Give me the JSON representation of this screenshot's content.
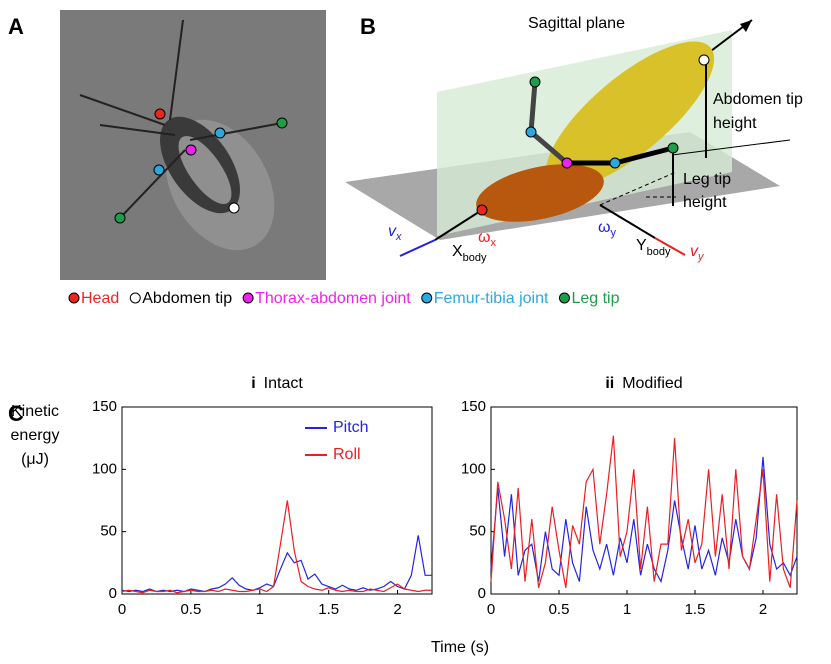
{
  "panels": {
    "a": "A",
    "b": "B",
    "c": "C"
  },
  "diagram": {
    "plane": "Sagittal plane",
    "abdomen_height": [
      "Abdomen tip",
      "height"
    ],
    "leg_height": [
      "Leg tip",
      "height"
    ],
    "vx": {
      "main": "v",
      "sub": "x"
    },
    "vy": {
      "main": "v",
      "sub": "y"
    },
    "wx": {
      "main": "ω",
      "sub": "x"
    },
    "wy": {
      "main": "ω",
      "sub": "y"
    },
    "xbody": {
      "main": "X",
      "sub": "body"
    },
    "ybody": {
      "main": "Y",
      "sub": "body"
    }
  },
  "legend": [
    {
      "name": "Head",
      "color": "#e8271f"
    },
    {
      "name": "Abdomen tip",
      "color": "#ffffff"
    },
    {
      "name": "Thorax-abdomen joint",
      "color": "#ee22ee"
    },
    {
      "name": "Femur-tibia joint",
      "color": "#2ba8e0"
    },
    {
      "name": "Leg tip",
      "color": "#1e9e4a"
    }
  ],
  "ylabel": [
    "Kinetic",
    "energy",
    "(μJ)"
  ],
  "xlabel": "Time (s)",
  "chart_data": [
    {
      "type": "line",
      "title_num": "i",
      "title": "Intact",
      "x": [
        0,
        0.05,
        0.1,
        0.15,
        0.2,
        0.25,
        0.3,
        0.35,
        0.4,
        0.45,
        0.5,
        0.55,
        0.6,
        0.65,
        0.7,
        0.75,
        0.8,
        0.85,
        0.9,
        0.95,
        1,
        1.05,
        1.1,
        1.15,
        1.2,
        1.25,
        1.3,
        1.35,
        1.4,
        1.45,
        1.5,
        1.55,
        1.6,
        1.65,
        1.7,
        1.75,
        1.8,
        1.85,
        1.9,
        1.95,
        2,
        2.05,
        2.1,
        2.15,
        2.2,
        2.25
      ],
      "series": [
        {
          "name": "Pitch",
          "color": "#2424e0",
          "values": [
            3,
            2,
            3,
            2,
            4,
            2,
            3,
            2,
            3,
            2,
            4,
            3,
            2,
            4,
            5,
            8,
            13,
            7,
            4,
            3,
            5,
            8,
            6,
            20,
            33,
            25,
            27,
            12,
            16,
            8,
            6,
            4,
            7,
            4,
            3,
            5,
            3,
            4,
            6,
            10,
            6,
            4,
            15,
            47,
            15,
            15
          ]
        },
        {
          "name": "Roll",
          "color": "#e82020",
          "values": [
            2,
            3,
            2,
            1,
            3,
            2,
            2,
            3,
            1,
            2,
            3,
            2,
            2,
            3,
            2,
            4,
            3,
            2,
            2,
            3,
            4,
            2,
            6,
            40,
            75,
            35,
            10,
            6,
            4,
            3,
            5,
            3,
            2,
            3,
            2,
            2,
            4,
            3,
            2,
            5,
            8,
            4,
            3,
            2,
            3,
            3
          ]
        }
      ],
      "xlim": [
        0,
        2.25
      ],
      "xticks": [
        0,
        0.5,
        1,
        1.5,
        2
      ],
      "ylim": [
        0,
        150
      ],
      "yticks": [
        0,
        50,
        100,
        150
      ],
      "legend": "upper center"
    },
    {
      "type": "line",
      "title_num": "ii",
      "title": "Modified",
      "x": [
        0,
        0.05,
        0.1,
        0.15,
        0.2,
        0.25,
        0.3,
        0.35,
        0.4,
        0.45,
        0.5,
        0.55,
        0.6,
        0.65,
        0.7,
        0.75,
        0.8,
        0.85,
        0.9,
        0.95,
        1,
        1.05,
        1.1,
        1.15,
        1.2,
        1.25,
        1.3,
        1.35,
        1.4,
        1.45,
        1.5,
        1.55,
        1.6,
        1.65,
        1.7,
        1.75,
        1.8,
        1.85,
        1.9,
        1.95,
        2,
        2.05,
        2.1,
        2.15,
        2.2,
        2.25
      ],
      "series": [
        {
          "name": "Pitch",
          "color": "#2424e0",
          "values": [
            20,
            85,
            30,
            80,
            15,
            35,
            40,
            10,
            50,
            20,
            15,
            60,
            25,
            10,
            70,
            35,
            20,
            40,
            15,
            45,
            25,
            60,
            15,
            40,
            20,
            10,
            35,
            75,
            45,
            20,
            55,
            20,
            35,
            15,
            45,
            25,
            60,
            30,
            20,
            45,
            110,
            40,
            20,
            25,
            15,
            30
          ]
        },
        {
          "name": "Roll",
          "color": "#e82020",
          "values": [
            10,
            90,
            60,
            20,
            85,
            10,
            60,
            5,
            25,
            70,
            35,
            5,
            55,
            40,
            90,
            100,
            40,
            80,
            127,
            30,
            50,
            100,
            20,
            70,
            10,
            40,
            40,
            125,
            35,
            60,
            25,
            40,
            100,
            30,
            80,
            20,
            100,
            30,
            20,
            60,
            100,
            10,
            80,
            20,
            5,
            75
          ]
        }
      ],
      "xlim": [
        0,
        2.25
      ],
      "xticks": [
        0,
        0.5,
        1,
        1.5,
        2
      ],
      "ylim": [
        0,
        150
      ],
      "yticks": [
        0,
        50,
        100,
        150
      ]
    }
  ]
}
